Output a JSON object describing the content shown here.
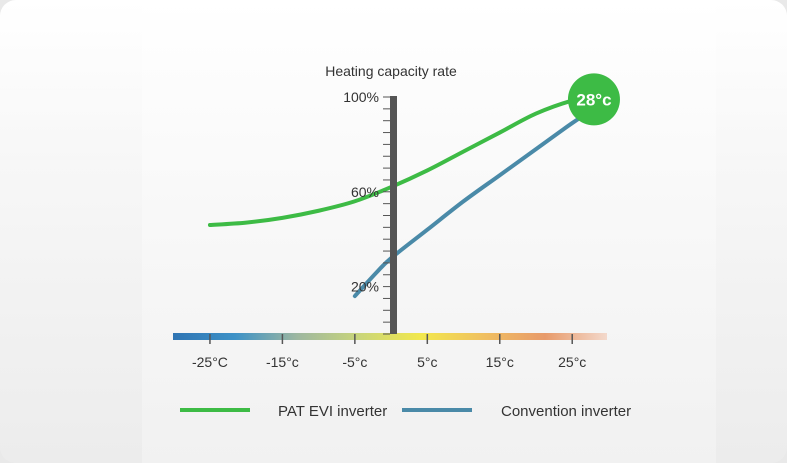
{
  "colors": {
    "pat": "#3dbb45",
    "conv": "#4a8aa8",
    "axis": "#555555",
    "badge": "#3dbb45",
    "badge_text": "#ffffff",
    "text": "#333333",
    "gradient_stops": [
      "#2f74b3",
      "#3d92c7",
      "#9db7a0",
      "#c9d57a",
      "#f2e84c",
      "#f0c060",
      "#e89a6a",
      "#f3d9cc"
    ]
  },
  "chart_data": {
    "type": "line",
    "title": "",
    "ylabel": "Heating capacity rate",
    "xlabel": "",
    "x_ticks": [
      {
        "value": -25,
        "label": "-25°C"
      },
      {
        "value": -15,
        "label": "-15°c"
      },
      {
        "value": -5,
        "label": "-5°c"
      },
      {
        "value": 5,
        "label": "5°c"
      },
      {
        "value": 15,
        "label": "15°c"
      },
      {
        "value": 25,
        "label": "25°c"
      }
    ],
    "y_ticks": [
      {
        "value": 100,
        "label": "100%"
      },
      {
        "value": 60,
        "label": "60%"
      },
      {
        "value": 20,
        "label": "20%"
      }
    ],
    "xlim": [
      -30.1,
      29.8
    ],
    "ylim": [
      0,
      100
    ],
    "grid": false,
    "legend_position": "bottom",
    "series": [
      {
        "name": "PAT EVI inverter",
        "color_key": "pat",
        "x": [
          -25,
          -20,
          -15,
          -10,
          -5,
          0,
          5,
          10,
          15,
          20,
          25,
          28
        ],
        "y": [
          46,
          47,
          49,
          52,
          56,
          62,
          69,
          77,
          85,
          93,
          98.5,
          100
        ]
      },
      {
        "name": "Convention inverter",
        "color_key": "conv",
        "x": [
          -5,
          -2,
          0,
          5,
          10,
          15,
          20,
          25,
          28
        ],
        "y": [
          16,
          26,
          32,
          44,
          56,
          67,
          78,
          89,
          95
        ]
      }
    ],
    "highlight": {
      "x": 28,
      "y": 99,
      "label": "28°c"
    }
  }
}
